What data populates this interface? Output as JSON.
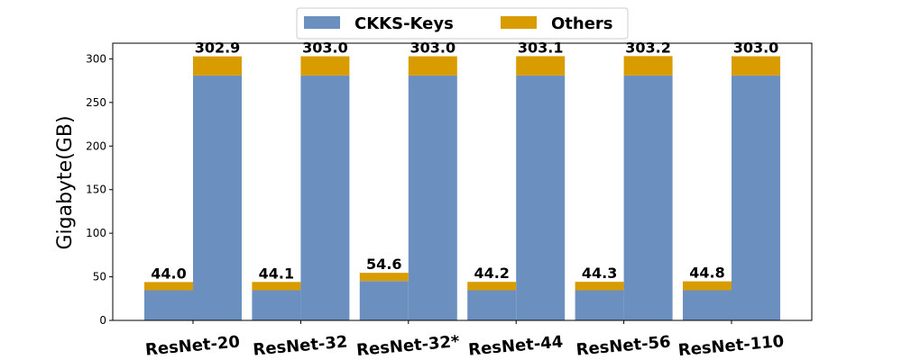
{
  "chart_data": {
    "type": "bar",
    "stacked": true,
    "ylabel": "Gigabyte(GB)",
    "ylim": [
      0,
      318
    ],
    "yticks": [
      0,
      50,
      100,
      150,
      200,
      250,
      300
    ],
    "categories": [
      "ResNet-20",
      "ResNet-32",
      "ResNet-32*",
      "ResNet-44",
      "ResNet-56",
      "ResNet-110"
    ],
    "legend": {
      "position": "top-center",
      "entries": [
        "CKKS-Keys",
        "Others"
      ]
    },
    "colors": {
      "ckks": "#6b8fbf",
      "others": "#d89c00"
    },
    "groups": [
      {
        "name": "left-bar",
        "ckks_keys": [
          34.6,
          34.6,
          45.2,
          34.6,
          34.6,
          34.6
        ],
        "others": [
          9.4,
          9.5,
          9.4,
          9.6,
          9.7,
          10.2
        ],
        "totals": [
          "44.0",
          "44.1",
          "54.6",
          "44.2",
          "44.3",
          "44.8"
        ]
      },
      {
        "name": "right-bar",
        "ckks_keys": [
          281.0,
          281.0,
          281.0,
          281.0,
          281.0,
          281.0
        ],
        "others": [
          21.9,
          22.0,
          22.0,
          22.1,
          22.2,
          22.0
        ],
        "totals": [
          "302.9",
          "303.0",
          "303.0",
          "303.1",
          "303.2",
          "303.0"
        ]
      }
    ]
  }
}
